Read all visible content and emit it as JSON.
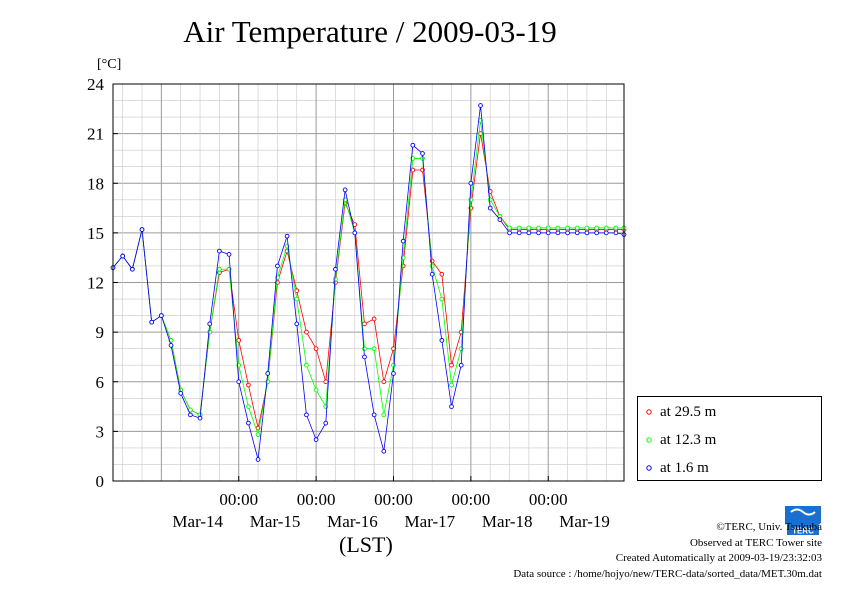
{
  "title": "Air Temperature / 2009-03-19",
  "unit_label": "[°C]",
  "x_axis_title": "(LST)",
  "legend": [
    {
      "label": "at 29.5 m",
      "color": "#ff0000"
    },
    {
      "label": "at 12.3 m",
      "color": "#00ff00"
    },
    {
      "label": "at 1.6 m",
      "color": "#0000ff"
    }
  ],
  "footer": {
    "copyright": "©TERC, Univ. Tsukuba",
    "observed": "Observed at TERC Tower site",
    "created": "Created Automatically at 2009-03-19/23:32:03",
    "source": "Data source : /home/hojyo/new/TERC-data/sorted_data/MET.30m.dat"
  },
  "logo_text": "TERC",
  "chart_data": {
    "type": "line",
    "title": "Air Temperature / 2009-03-19",
    "ylabel": "[°C]",
    "xlabel": "(LST)",
    "ylim": [
      0,
      24
    ],
    "yticks": [
      0,
      3,
      6,
      9,
      12,
      15,
      18,
      21,
      24
    ],
    "xlim": [
      "2009-03-13 09:00",
      "2009-03-19 23:30"
    ],
    "xticks": [
      {
        "x": "2009-03-15 00:00",
        "time": "00:00",
        "date": "Mar-14"
      },
      {
        "x": "2009-03-16 00:00",
        "time": "00:00",
        "date": "Mar-15"
      },
      {
        "x": "2009-03-17 00:00",
        "time": "00:00",
        "date": "Mar-16"
      },
      {
        "x": "2009-03-18 00:00",
        "time": "00:00",
        "date": "Mar-17"
      },
      {
        "x": "2009-03-19 00:00",
        "time": "00:00",
        "date": "Mar-18"
      },
      {
        "x": "",
        "time": "",
        "date": "Mar-19"
      }
    ],
    "grid": true,
    "legend_position": "bottom-right, outside plot",
    "x": [
      "2009-03-13 09:00",
      "2009-03-13 12:00",
      "2009-03-13 15:00",
      "2009-03-13 18:00",
      "2009-03-13 21:00",
      "2009-03-14 00:00",
      "2009-03-14 03:00",
      "2009-03-14 06:00",
      "2009-03-14 09:00",
      "2009-03-14 12:00",
      "2009-03-14 15:00",
      "2009-03-14 18:00",
      "2009-03-14 21:00",
      "2009-03-15 00:00",
      "2009-03-15 03:00",
      "2009-03-15 06:00",
      "2009-03-15 09:00",
      "2009-03-15 12:00",
      "2009-03-15 15:00",
      "2009-03-15 18:00",
      "2009-03-15 21:00",
      "2009-03-16 00:00",
      "2009-03-16 03:00",
      "2009-03-16 06:00",
      "2009-03-16 09:00",
      "2009-03-16 12:00",
      "2009-03-16 15:00",
      "2009-03-16 18:00",
      "2009-03-16 21:00",
      "2009-03-17 00:00",
      "2009-03-17 03:00",
      "2009-03-17 06:00",
      "2009-03-17 09:00",
      "2009-03-17 12:00",
      "2009-03-17 15:00",
      "2009-03-17 18:00",
      "2009-03-17 21:00",
      "2009-03-18 00:00",
      "2009-03-18 03:00",
      "2009-03-18 06:00",
      "2009-03-18 09:00",
      "2009-03-18 12:00",
      "2009-03-18 15:00",
      "2009-03-18 18:00",
      "2009-03-18 21:00",
      "2009-03-19 00:00",
      "2009-03-19 03:00",
      "2009-03-19 06:00",
      "2009-03-19 09:00",
      "2009-03-19 12:00",
      "2009-03-19 15:00",
      "2009-03-19 18:00",
      "2009-03-19 21:00",
      "2009-03-19 23:30"
    ],
    "series": [
      {
        "name": "at 29.5 m",
        "color": "#ff0000",
        "values": [
          12.9,
          13.6,
          12.8,
          15.2,
          9.6,
          10.0,
          8.5,
          5.5,
          4.3,
          4.0,
          9.0,
          12.6,
          12.8,
          8.5,
          5.8,
          3.2,
          6.0,
          12.0,
          13.9,
          11.5,
          9.0,
          8.0,
          6.0,
          12.0,
          16.8,
          15.5,
          9.5,
          9.8,
          6.0,
          8.0,
          13.0,
          18.8,
          18.8,
          13.3,
          12.5,
          7.0,
          9.0,
          16.5,
          21.0,
          17.5,
          16.0,
          15.2,
          15.2,
          15.2,
          15.2,
          15.2,
          15.2,
          15.2,
          15.2,
          15.2,
          15.2,
          15.2,
          15.2,
          15.2
        ]
      },
      {
        "name": "at 12.3 m",
        "color": "#00ff00",
        "values": [
          12.9,
          13.6,
          12.8,
          15.2,
          9.6,
          10.0,
          8.5,
          5.5,
          4.3,
          4.0,
          9.0,
          12.8,
          12.8,
          7.0,
          4.5,
          2.8,
          6.0,
          12.3,
          14.2,
          11.0,
          7.0,
          5.5,
          4.5,
          12.2,
          17.0,
          15.0,
          8.0,
          8.0,
          4.0,
          7.0,
          13.5,
          19.5,
          19.5,
          13.0,
          11.0,
          5.8,
          8.0,
          17.0,
          21.8,
          17.0,
          16.0,
          15.3,
          15.3,
          15.3,
          15.3,
          15.3,
          15.3,
          15.3,
          15.3,
          15.3,
          15.3,
          15.3,
          15.3,
          15.3
        ]
      },
      {
        "name": "at 1.6 m",
        "color": "#0000ff",
        "values": [
          12.9,
          13.6,
          12.8,
          15.2,
          9.6,
          10.0,
          8.2,
          5.3,
          4.0,
          3.8,
          9.5,
          13.9,
          13.7,
          6.0,
          3.5,
          1.3,
          6.5,
          13.0,
          14.8,
          9.5,
          4.0,
          2.5,
          3.5,
          12.8,
          17.6,
          15.0,
          7.5,
          4.0,
          1.8,
          6.5,
          14.5,
          20.3,
          19.8,
          12.5,
          8.5,
          4.5,
          7.0,
          18.0,
          22.7,
          16.5,
          15.8,
          15.0,
          15.0,
          15.0,
          15.0,
          15.0,
          15.0,
          15.0,
          15.0,
          15.0,
          15.0,
          15.0,
          15.0,
          14.9
        ]
      }
    ]
  }
}
